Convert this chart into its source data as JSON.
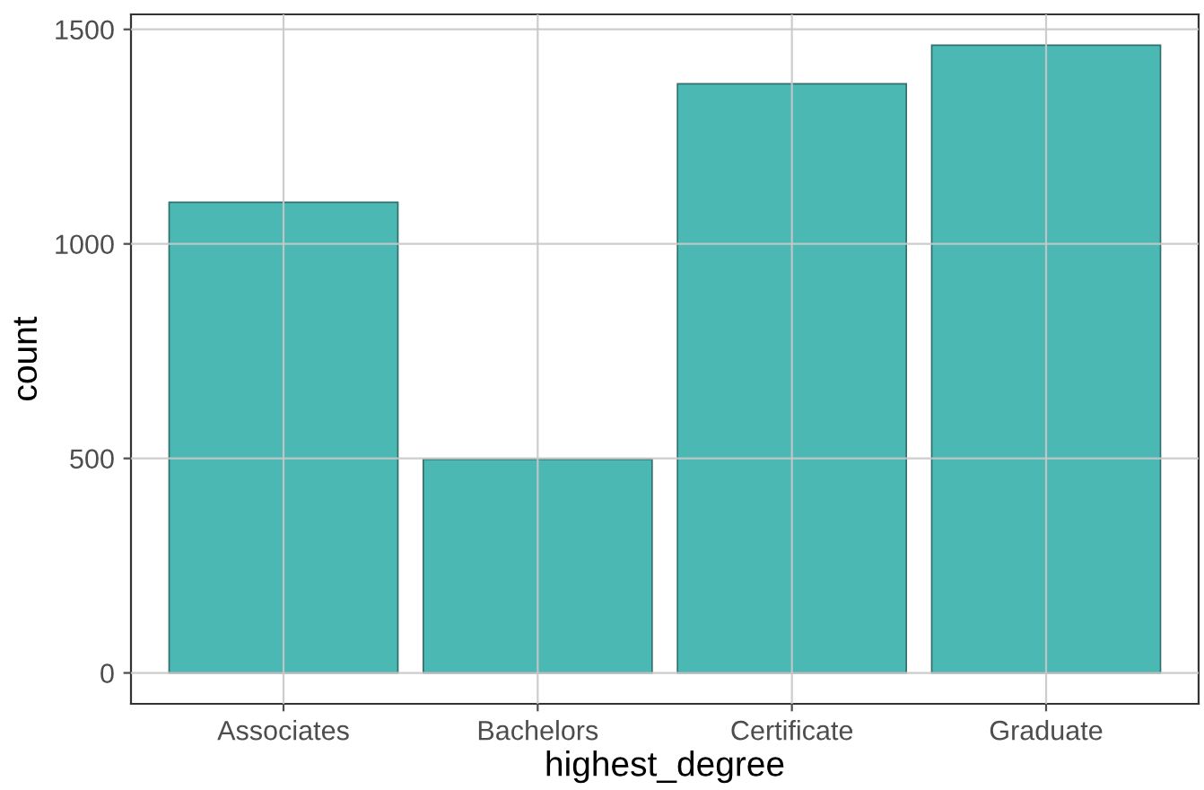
{
  "chart_data": {
    "type": "bar",
    "xlabel": "highest_degree",
    "ylabel": "count",
    "categories": [
      "Associates",
      "Bachelors",
      "Certificate",
      "Graduate"
    ],
    "values": [
      1097,
      498,
      1373,
      1463
    ],
    "color": "#4cb8b3",
    "ylim": [
      -72,
      1535
    ],
    "yticks": [
      0,
      500,
      1000,
      1500
    ],
    "grid": true
  }
}
